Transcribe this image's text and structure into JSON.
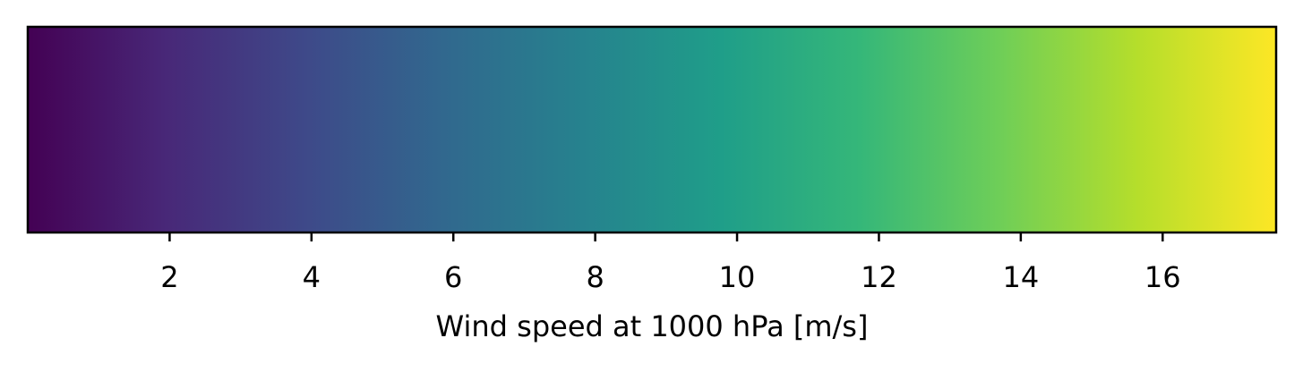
{
  "chart_data": {
    "type": "colorbar",
    "orientation": "horizontal",
    "colormap": "viridis",
    "colormap_stops": [
      "#440154",
      "#482878",
      "#3e4989",
      "#31688e",
      "#26828e",
      "#1f9e89",
      "#35b779",
      "#6ece58",
      "#b5de2b",
      "#fde725"
    ],
    "vmin": 0,
    "vmax": 17.6,
    "xlim": [
      0,
      17.6
    ],
    "ticks": [
      2,
      4,
      6,
      8,
      10,
      12,
      14,
      16
    ],
    "tick_labels": [
      "2",
      "4",
      "6",
      "8",
      "10",
      "12",
      "14",
      "16"
    ],
    "xlabel": "Wind speed at 1000 hPa [m/s]"
  }
}
